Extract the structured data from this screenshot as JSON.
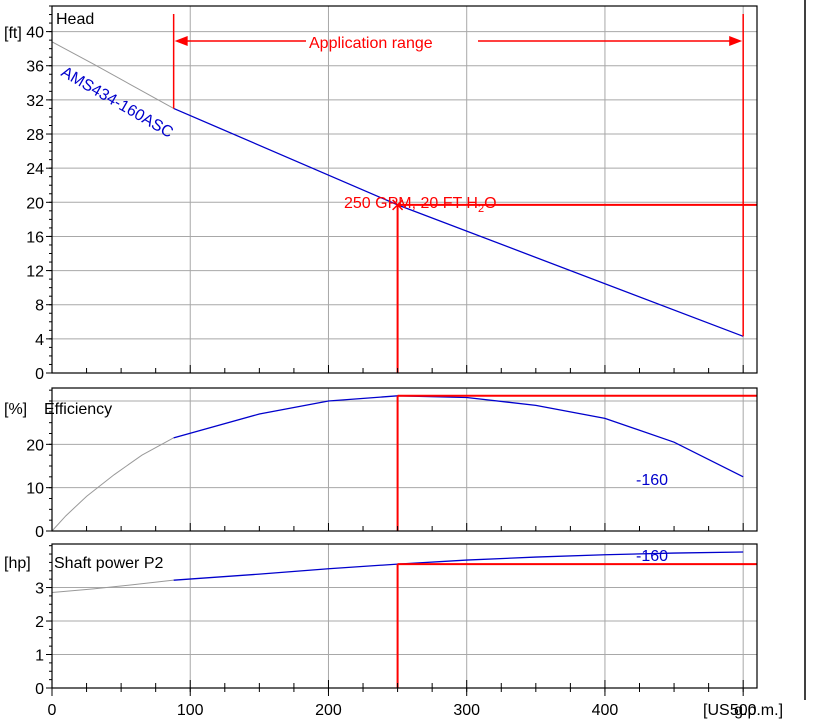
{
  "colors": {
    "grid": "#a8a8a8",
    "frame": "#000000",
    "curve": "#0000cc",
    "extension": "#999999",
    "duty": "#ff0000",
    "text": "#000000"
  },
  "chart_data": [
    {
      "type": "line",
      "title": "Head",
      "unit_label": "[ft]",
      "xlim": [
        0,
        510
      ],
      "ylim": [
        0,
        43
      ],
      "y_ticks": [
        0,
        4,
        8,
        12,
        16,
        20,
        24,
        28,
        32,
        36,
        40
      ],
      "curve_label": "AMS434-160ASC",
      "series": [
        {
          "name": "AMS434-160ASC",
          "x": [
            88,
            250,
            500
          ],
          "y": [
            31.0,
            19.7,
            4.3
          ]
        },
        {
          "x": [
            0,
            30,
            60,
            88
          ],
          "y": [
            38.8,
            36.2,
            33.5,
            31.0
          ]
        }
      ],
      "application_range": {
        "label": "Application range",
        "from": 88,
        "to": 500
      },
      "duty_point": {
        "label_main": "250 GPM, 20 FT H",
        "label_sub": "2",
        "label_tail": "O",
        "x": 250,
        "y": 19.7
      }
    },
    {
      "type": "line",
      "title": "Efficiency",
      "unit_label": "[%]",
      "xlim": [
        0,
        510
      ],
      "ylim": [
        0,
        33
      ],
      "y_ticks": [
        0,
        10,
        20
      ],
      "curve_label": "-160",
      "series": [
        {
          "name": "-160",
          "x": [
            88,
            150,
            200,
            250,
            300,
            350,
            400,
            450,
            500
          ],
          "y": [
            21.5,
            27.0,
            30.0,
            31.2,
            30.8,
            29.0,
            26.0,
            20.5,
            12.5
          ]
        },
        {
          "x": [
            0,
            10,
            25,
            45,
            65,
            88
          ],
          "y": [
            0,
            3.5,
            8.0,
            13.0,
            17.5,
            21.5
          ]
        }
      ],
      "duty_point": {
        "x": 250,
        "y": 31.2
      }
    },
    {
      "type": "line",
      "title": "Shaft power P2",
      "unit_label": "[hp]",
      "xlim": [
        0,
        510
      ],
      "ylim": [
        0,
        4.3
      ],
      "y_ticks": [
        0,
        1,
        2,
        3
      ],
      "curve_label": "-160",
      "series": [
        {
          "name": "-160",
          "x": [
            88,
            150,
            200,
            250,
            300,
            350,
            400,
            450,
            500
          ],
          "y": [
            3.22,
            3.4,
            3.56,
            3.7,
            3.82,
            3.91,
            3.98,
            4.03,
            4.06
          ]
        },
        {
          "x": [
            0,
            30,
            60,
            88
          ],
          "y": [
            2.85,
            2.96,
            3.09,
            3.22
          ]
        }
      ],
      "duty_point": {
        "x": 250,
        "y": 3.7
      }
    }
  ],
  "x_axis": {
    "ticks": [
      0,
      100,
      200,
      300,
      400,
      500
    ],
    "unit_label": "[US g.p.m.]"
  }
}
